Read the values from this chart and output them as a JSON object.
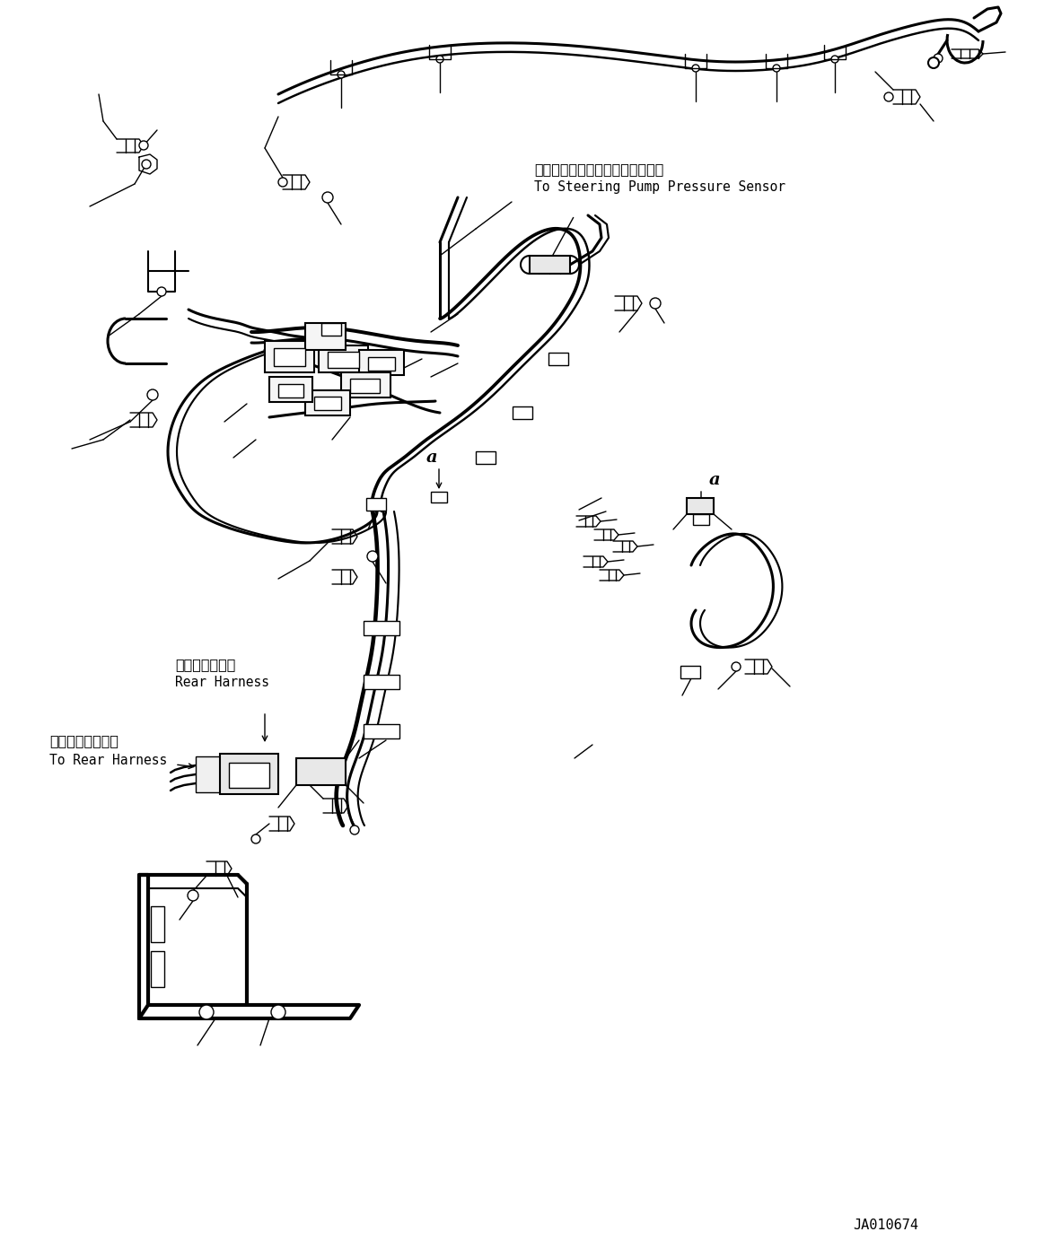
{
  "bg_color": "#ffffff",
  "line_color": "#000000",
  "label_steering_jp": "ステアリングポンプ圧力センサへ",
  "label_steering_en": "To Steering Pump Pressure Sensor",
  "label_rear_harness_jp": "リヤーハーネス",
  "label_rear_harness_en": "Rear Harness",
  "label_to_rear_jp": "リヤーハーネスへ",
  "label_to_rear_en": "To Rear Harness",
  "part_id": "JA010674",
  "label_a1": "a",
  "label_a2": "a",
  "figsize": [
    11.63,
    14.02
  ],
  "dpi": 100
}
